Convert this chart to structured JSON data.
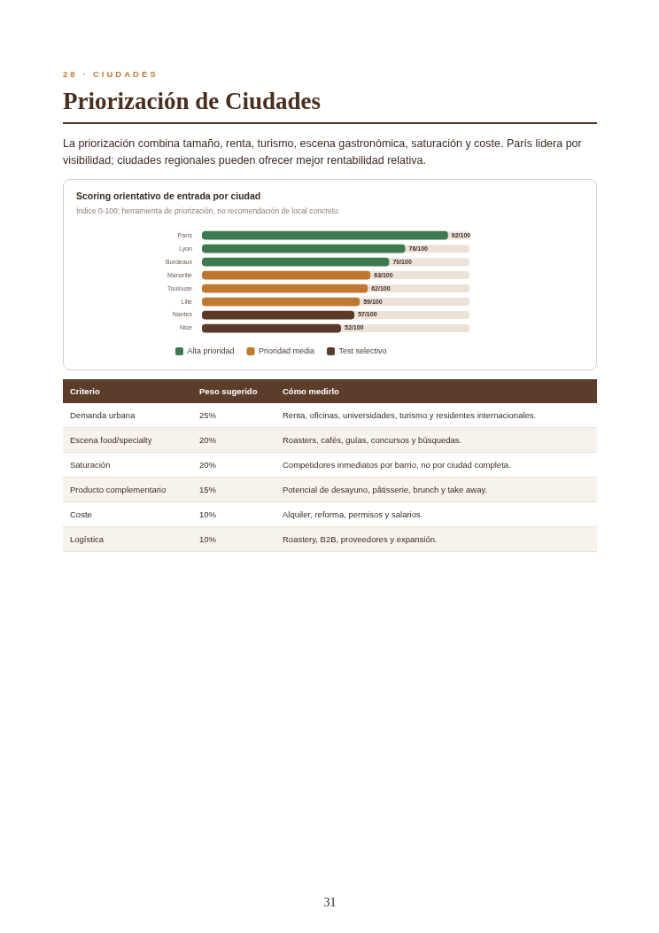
{
  "chart_data": {
    "type": "bar",
    "orientation": "horizontal",
    "stacked": true,
    "title": "Scoring orientativo de entrada por ciudad",
    "subtitle": "Índice 0-100; herramienta de priorización, no recomendación de local concreto.",
    "categories": [
      "París",
      "Lyon",
      "Bordeaux",
      "Marseille",
      "Toulouse",
      "Lille",
      "Nantes",
      "Nice"
    ],
    "series": [
      {
        "name": "Alta prioridad",
        "color": "#3d7a50",
        "values": [
          92,
          76,
          70,
          null,
          null,
          null,
          null,
          null
        ],
        "value_labels": [
          "92/100",
          "76/100",
          "70/100",
          null,
          null,
          null,
          null,
          null
        ]
      },
      {
        "name": "Prioridad media",
        "color": "#c0772f",
        "values": [
          null,
          null,
          null,
          63,
          62,
          59,
          null,
          null
        ],
        "value_labels": [
          null,
          null,
          null,
          "63/100",
          "62/100",
          "59/100",
          null,
          null
        ]
      },
      {
        "name": "Test selectivo",
        "color": "#5a3a28",
        "values": [
          null,
          null,
          null,
          null,
          null,
          null,
          57,
          52
        ],
        "value_labels": [
          null,
          null,
          null,
          null,
          null,
          null,
          "57/100",
          "52/100"
        ]
      }
    ],
    "xlim": [
      0,
      100
    ],
    "tick_labels": "y",
    "grid": false,
    "legend": "bottom left",
    "annotations": [
      "28 · CIUDADES",
      "Priorización de Ciudades",
      "La priorización combina tamaño, renta, turismo, escena gastronómica, saturación y coste. París lidera por visibilidad; ciudades regionales pueden ofrecer mejor rentabilidad relativa.",
      "Criterio",
      "Peso sugerido",
      "Cómo medirlo",
      "Demanda urbana",
      "25%",
      "Renta, oficinas, universidades, turismo y residentes internacionales.",
      "Escena food/specialty",
      "20%",
      "Roasters, cafés, guías, concursos y búsquedas.",
      "Saturación",
      "20%",
      "Competidores inmediatos por barrio, no por ciudad completa.",
      "Producto complementario",
      "15%",
      "Potencial de desayuno, pâtisserie, brunch y take away.",
      "Coste",
      "10%",
      "Alquiler, reforma, permisos y salarios.",
      "Logística",
      "10%",
      "Roastery, B2B, proveedores y expansión.",
      "31"
    ]
  }
}
